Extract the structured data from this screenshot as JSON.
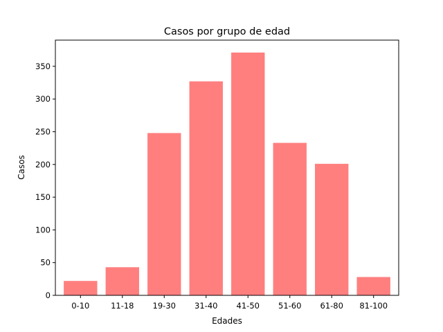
{
  "chart_data": {
    "type": "bar",
    "title": "Casos por grupo de edad",
    "xlabel": "Edades",
    "ylabel": "Casos",
    "categories": [
      "0-10",
      "11-18",
      "19-30",
      "31-40",
      "41-50",
      "51-60",
      "61-80",
      "81-100"
    ],
    "values": [
      22,
      43,
      248,
      327,
      371,
      233,
      201,
      28
    ],
    "ylim": [
      0,
      390
    ],
    "yticks": [
      0,
      50,
      100,
      150,
      200,
      250,
      300,
      350
    ],
    "bar_color": "#ff7f7f",
    "grid": false,
    "legend": "none"
  }
}
